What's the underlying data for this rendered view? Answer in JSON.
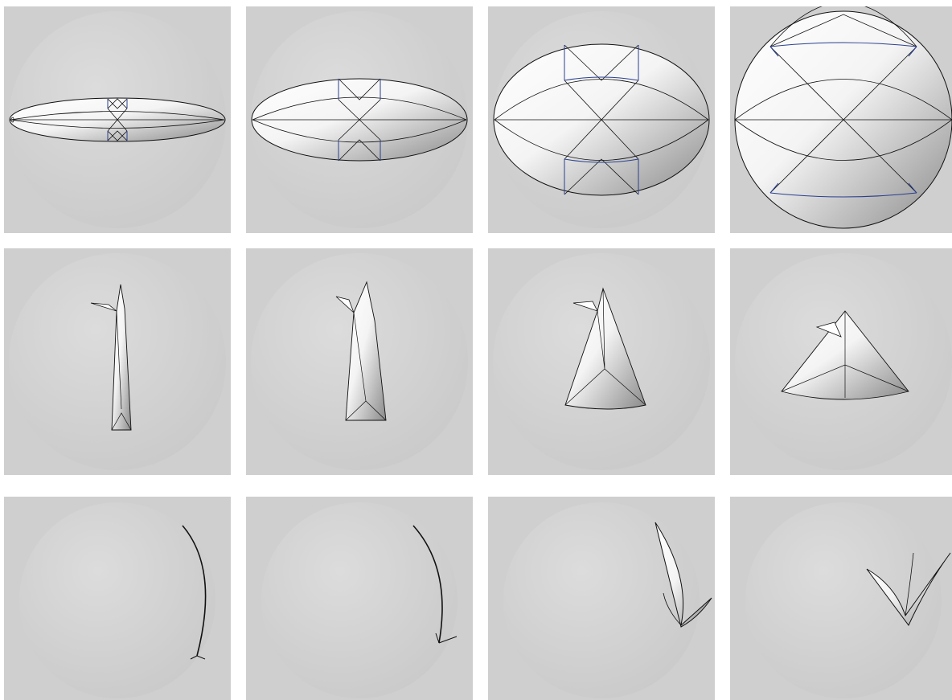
{
  "figure": {
    "rows": [
      {
        "id": "row-ellipsoid-inflation",
        "panels": [
          {
            "id": "r1c1",
            "shape": "flat-ellipsoid",
            "stage": 1
          },
          {
            "id": "r1c2",
            "shape": "ellipsoid",
            "stage": 2
          },
          {
            "id": "r1c3",
            "shape": "ellipsoid",
            "stage": 3
          },
          {
            "id": "r1c4",
            "shape": "sphere",
            "stage": 4
          }
        ]
      },
      {
        "id": "row-sail-folding",
        "panels": [
          {
            "id": "r2c1",
            "shape": "thin-spike",
            "stage": 1
          },
          {
            "id": "r2c2",
            "shape": "spike",
            "stage": 2
          },
          {
            "id": "r2c3",
            "shape": "sail",
            "stage": 3
          },
          {
            "id": "r2c4",
            "shape": "tent",
            "stage": 4
          }
        ]
      },
      {
        "id": "row-rim-curve",
        "panels": [
          {
            "id": "r3c1",
            "shape": "thin-arc",
            "stage": 1
          },
          {
            "id": "r3c2",
            "shape": "arc",
            "stage": 2
          },
          {
            "id": "r3c3",
            "shape": "arc-with-fin",
            "stage": 3
          },
          {
            "id": "r3c4",
            "shape": "horn-fin",
            "stage": 4
          }
        ]
      }
    ]
  },
  "colors": {
    "panel_background": "#cfcfcf",
    "sphere_shade": "#d6d6d6",
    "surface_light": "#ffffff",
    "surface_shadow": "#8a8a8a",
    "outline": "#111111",
    "crease_blue": "#2a3f8f"
  }
}
